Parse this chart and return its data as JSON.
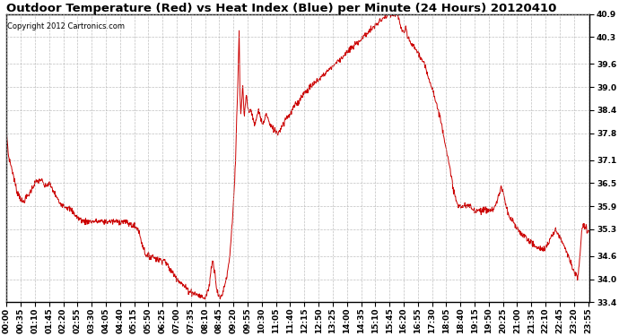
{
  "title": "Outdoor Temperature (Red) vs Heat Index (Blue) per Minute (24 Hours) 20120410",
  "copyright_text": "Copyright 2012 Cartronics.com",
  "line_color": "#cc0000",
  "background_color": "#ffffff",
  "grid_color": "#b0b0b0",
  "ylim": [
    33.4,
    40.9
  ],
  "yticks": [
    33.4,
    34.0,
    34.6,
    35.3,
    35.9,
    36.5,
    37.1,
    37.8,
    38.4,
    39.0,
    39.6,
    40.3,
    40.9
  ],
  "title_fontsize": 9.5,
  "tick_fontsize": 6.5,
  "keypoints": [
    [
      0,
      37.8
    ],
    [
      5,
      37.2
    ],
    [
      15,
      36.8
    ],
    [
      25,
      36.3
    ],
    [
      40,
      36.0
    ],
    [
      55,
      36.2
    ],
    [
      70,
      36.5
    ],
    [
      85,
      36.6
    ],
    [
      95,
      36.4
    ],
    [
      105,
      36.5
    ],
    [
      115,
      36.3
    ],
    [
      130,
      36.0
    ],
    [
      145,
      35.9
    ],
    [
      160,
      35.8
    ],
    [
      175,
      35.6
    ],
    [
      190,
      35.5
    ],
    [
      210,
      35.5
    ],
    [
      230,
      35.5
    ],
    [
      250,
      35.5
    ],
    [
      270,
      35.5
    ],
    [
      290,
      35.5
    ],
    [
      310,
      35.4
    ],
    [
      325,
      35.3
    ],
    [
      335,
      34.9
    ],
    [
      345,
      34.6
    ],
    [
      360,
      34.6
    ],
    [
      375,
      34.5
    ],
    [
      390,
      34.5
    ],
    [
      400,
      34.3
    ],
    [
      415,
      34.1
    ],
    [
      430,
      33.9
    ],
    [
      450,
      33.7
    ],
    [
      470,
      33.6
    ],
    [
      490,
      33.5
    ],
    [
      500,
      33.8
    ],
    [
      505,
      34.3
    ],
    [
      510,
      34.5
    ],
    [
      512,
      34.3
    ],
    [
      515,
      34.1
    ],
    [
      518,
      33.8
    ],
    [
      522,
      33.6
    ],
    [
      527,
      33.5
    ],
    [
      532,
      33.6
    ],
    [
      537,
      33.8
    ],
    [
      542,
      34.0
    ],
    [
      550,
      34.5
    ],
    [
      555,
      35.2
    ],
    [
      560,
      36.0
    ],
    [
      565,
      37.0
    ],
    [
      568,
      38.2
    ],
    [
      570,
      38.8
    ],
    [
      572,
      39.5
    ],
    [
      574,
      40.5
    ],
    [
      576,
      38.8
    ],
    [
      578,
      38.3
    ],
    [
      580,
      38.6
    ],
    [
      583,
      39.0
    ],
    [
      585,
      38.5
    ],
    [
      587,
      38.2
    ],
    [
      589,
      38.5
    ],
    [
      592,
      38.8
    ],
    [
      595,
      38.5
    ],
    [
      598,
      38.3
    ],
    [
      602,
      38.5
    ],
    [
      607,
      38.2
    ],
    [
      612,
      38.0
    ],
    [
      617,
      38.2
    ],
    [
      622,
      38.4
    ],
    [
      627,
      38.2
    ],
    [
      632,
      38.0
    ],
    [
      637,
      38.2
    ],
    [
      642,
      38.3
    ],
    [
      650,
      38.0
    ],
    [
      660,
      37.9
    ],
    [
      670,
      37.8
    ],
    [
      680,
      38.0
    ],
    [
      690,
      38.2
    ],
    [
      700,
      38.3
    ],
    [
      710,
      38.5
    ],
    [
      720,
      38.6
    ],
    [
      730,
      38.8
    ],
    [
      740,
      38.9
    ],
    [
      750,
      39.0
    ],
    [
      760,
      39.1
    ],
    [
      770,
      39.2
    ],
    [
      780,
      39.3
    ],
    [
      790,
      39.4
    ],
    [
      800,
      39.5
    ],
    [
      810,
      39.6
    ],
    [
      820,
      39.7
    ],
    [
      830,
      39.8
    ],
    [
      840,
      39.9
    ],
    [
      850,
      40.0
    ],
    [
      860,
      40.1
    ],
    [
      870,
      40.2
    ],
    [
      880,
      40.3
    ],
    [
      890,
      40.4
    ],
    [
      900,
      40.5
    ],
    [
      910,
      40.6
    ],
    [
      920,
      40.7
    ],
    [
      930,
      40.8
    ],
    [
      940,
      40.85
    ],
    [
      950,
      40.9
    ],
    [
      958,
      40.85
    ],
    [
      962,
      40.9
    ],
    [
      966,
      40.85
    ],
    [
      970,
      40.7
    ],
    [
      975,
      40.5
    ],
    [
      980,
      40.4
    ],
    [
      985,
      40.5
    ],
    [
      990,
      40.3
    ],
    [
      995,
      40.2
    ],
    [
      1000,
      40.1
    ],
    [
      1010,
      40.0
    ],
    [
      1020,
      39.8
    ],
    [
      1030,
      39.6
    ],
    [
      1040,
      39.3
    ],
    [
      1050,
      39.0
    ],
    [
      1060,
      38.6
    ],
    [
      1070,
      38.2
    ],
    [
      1080,
      37.7
    ],
    [
      1090,
      37.1
    ],
    [
      1100,
      36.5
    ],
    [
      1110,
      36.0
    ],
    [
      1115,
      35.9
    ],
    [
      1120,
      35.9
    ],
    [
      1125,
      35.9
    ],
    [
      1130,
      35.9
    ],
    [
      1135,
      35.9
    ],
    [
      1140,
      35.9
    ],
    [
      1145,
      35.9
    ],
    [
      1150,
      35.8
    ],
    [
      1160,
      35.8
    ],
    [
      1170,
      35.8
    ],
    [
      1180,
      35.8
    ],
    [
      1190,
      35.8
    ],
    [
      1200,
      35.8
    ],
    [
      1210,
      36.0
    ],
    [
      1215,
      36.2
    ],
    [
      1220,
      36.4
    ],
    [
      1225,
      36.3
    ],
    [
      1230,
      36.0
    ],
    [
      1235,
      35.8
    ],
    [
      1240,
      35.6
    ],
    [
      1250,
      35.5
    ],
    [
      1260,
      35.3
    ],
    [
      1270,
      35.2
    ],
    [
      1280,
      35.1
    ],
    [
      1290,
      35.0
    ],
    [
      1300,
      34.9
    ],
    [
      1310,
      34.8
    ],
    [
      1320,
      34.8
    ],
    [
      1330,
      34.8
    ],
    [
      1340,
      35.0
    ],
    [
      1350,
      35.2
    ],
    [
      1355,
      35.3
    ],
    [
      1360,
      35.2
    ],
    [
      1370,
      35.0
    ],
    [
      1380,
      34.8
    ],
    [
      1390,
      34.5
    ],
    [
      1400,
      34.2
    ],
    [
      1410,
      34.0
    ],
    [
      1420,
      35.3
    ],
    [
      1425,
      35.4
    ],
    [
      1430,
      35.3
    ],
    [
      1435,
      35.2
    ],
    [
      1439,
      35.3
    ]
  ]
}
